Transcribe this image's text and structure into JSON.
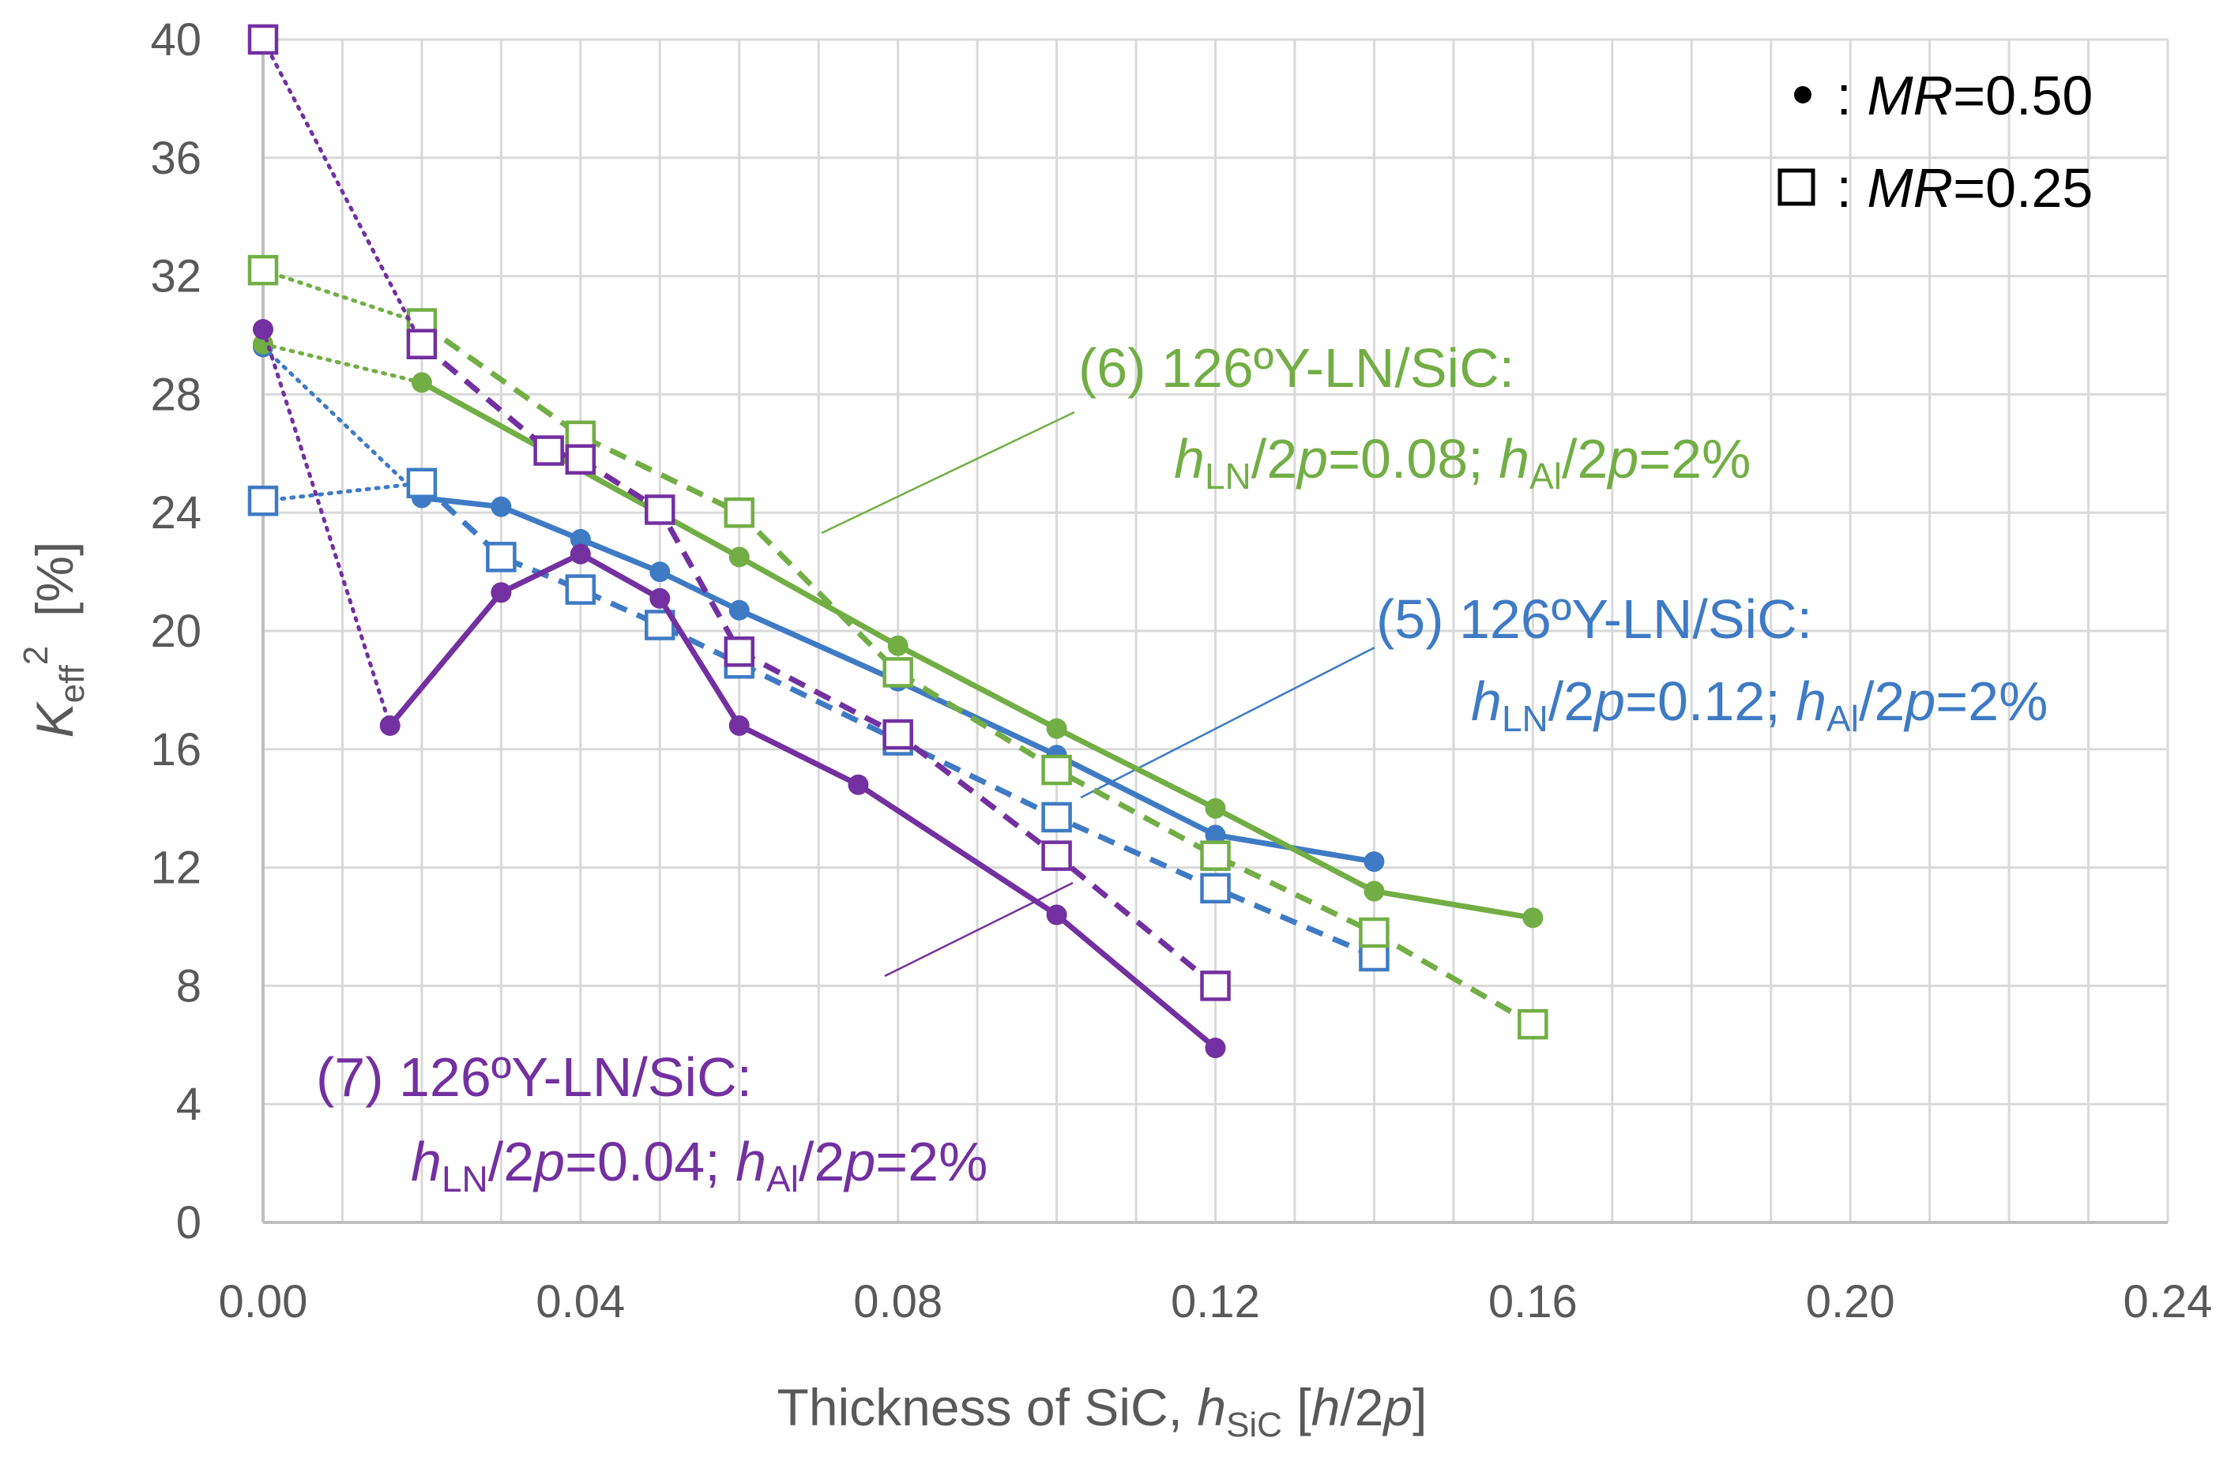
{
  "chart_data": {
    "type": "line",
    "xlabel": {
      "text": "Thickness of SiC, ",
      "var": "h",
      "sub": "SiC",
      "unit_open": " [",
      "unit_var": "h",
      "unit_rest": "/2",
      "unit_var2": "p",
      "unit_close": "]"
    },
    "ylabel": {
      "var": "K",
      "sub": "eff",
      "sup": "2",
      "unit": "  [%]"
    },
    "xlim": [
      0,
      0.24
    ],
    "ylim": [
      0,
      40
    ],
    "xticks": [
      "0.00",
      "0.04",
      "0.08",
      "0.12",
      "0.16",
      "0.20",
      "0.24"
    ],
    "yticks": [
      "0",
      "4",
      "8",
      "12",
      "16",
      "20",
      "24",
      "28",
      "32",
      "36",
      "40"
    ],
    "grid": true,
    "colors": {
      "blue": "#3f7bc4",
      "green": "#72ae45",
      "purple": "#7330a0"
    },
    "legend": {
      "position": "top-right",
      "items": [
        {
          "marker": "circle",
          "prefix": " : ",
          "var": "MR",
          "value": "=0.50"
        },
        {
          "marker": "square",
          "prefix": " : ",
          "var": "MR",
          "value": "=0.25"
        }
      ]
    },
    "annotations": [
      {
        "id": "ann6",
        "color": "#72ae45",
        "line1": "(6) 126ºY-LN/SiC:",
        "h1": "h",
        "s1": "LN",
        "m1": "/2",
        "p1": "p",
        "v1": "=0.08; ",
        "h2": "h",
        "s2": "Al",
        "m2": "/2",
        "p2": "p",
        "v2": "=2%"
      },
      {
        "id": "ann5",
        "color": "#3f7bc4",
        "line1": "(5) 126ºY-LN/SiC:",
        "h1": "h",
        "s1": "LN",
        "m1": "/2",
        "p1": "p",
        "v1": "=0.12; ",
        "h2": "h",
        "s2": "Al",
        "m2": "/2",
        "p2": "p",
        "v2": "=2%"
      },
      {
        "id": "ann7",
        "color": "#7330a0",
        "line1": "(7) 126ºY-LN/SiC:",
        "h1": "h",
        "s1": "LN",
        "m1": "/2",
        "p1": "p",
        "v1": "=0.04; ",
        "h2": "h",
        "s2": "Al",
        "m2": "/2",
        "p2": "p",
        "v2": "=2%"
      }
    ],
    "series": [
      {
        "name": "(5) MR=0.50",
        "color": "blue",
        "marker": "circle",
        "dash": "solid",
        "x": [
          0.02,
          0.03,
          0.04,
          0.05,
          0.06,
          0.08,
          0.1,
          0.12,
          0.14
        ],
        "y": [
          24.5,
          24.2,
          23.1,
          22.0,
          20.7,
          18.3,
          15.8,
          13.1,
          12.2
        ],
        "lead": {
          "x": [
            0.0,
            0.02
          ],
          "y": [
            29.6,
            24.5
          ]
        }
      },
      {
        "name": "(5) MR=0.25",
        "color": "blue",
        "marker": "square",
        "dash": "dashed",
        "x": [
          0.02,
          0.03,
          0.04,
          0.05,
          0.06,
          0.08,
          0.1,
          0.12,
          0.14
        ],
        "y": [
          25.0,
          22.5,
          21.4,
          20.2,
          18.9,
          16.3,
          13.7,
          11.3,
          9.0
        ],
        "lead": {
          "x": [
            0.0,
            0.02
          ],
          "y": [
            24.4,
            25.0
          ]
        }
      },
      {
        "name": "(6) MR=0.50",
        "color": "green",
        "marker": "circle",
        "dash": "solid",
        "x": [
          0.02,
          0.06,
          0.08,
          0.1,
          0.12,
          0.14,
          0.16
        ],
        "y": [
          28.4,
          22.5,
          19.5,
          16.7,
          14.0,
          11.2,
          10.3
        ],
        "lead": {
          "x": [
            0.0,
            0.02
          ],
          "y": [
            29.7,
            28.4
          ]
        }
      },
      {
        "name": "(6) MR=0.25",
        "color": "green",
        "marker": "square",
        "dash": "dashed",
        "x": [
          0.02,
          0.04,
          0.06,
          0.08,
          0.1,
          0.12,
          0.14,
          0.16
        ],
        "y": [
          30.4,
          26.6,
          24.0,
          18.6,
          15.3,
          12.4,
          9.8,
          6.7
        ],
        "lead": {
          "x": [
            0.0,
            0.02
          ],
          "y": [
            32.2,
            30.4
          ]
        }
      },
      {
        "name": "(7) MR=0.50",
        "color": "purple",
        "marker": "circle",
        "dash": "solid",
        "x": [
          0.016,
          0.03,
          0.04,
          0.05,
          0.06,
          0.075,
          0.1,
          0.12
        ],
        "y": [
          16.8,
          21.3,
          22.6,
          21.1,
          16.8,
          14.8,
          10.4,
          5.9
        ],
        "lead": {
          "x": [
            0.0,
            0.016
          ],
          "y": [
            30.2,
            16.8
          ]
        }
      },
      {
        "name": "(7) MR=0.25",
        "color": "purple",
        "marker": "square",
        "dash": "dashed",
        "x": [
          0.02,
          0.036,
          0.04,
          0.05,
          0.06,
          0.08,
          0.1,
          0.12
        ],
        "y": [
          29.7,
          26.1,
          25.8,
          24.1,
          19.3,
          16.5,
          12.4,
          8.0
        ],
        "lead": {
          "x": [
            0.0,
            0.02
          ],
          "y": [
            40.0,
            29.7
          ]
        }
      }
    ]
  }
}
